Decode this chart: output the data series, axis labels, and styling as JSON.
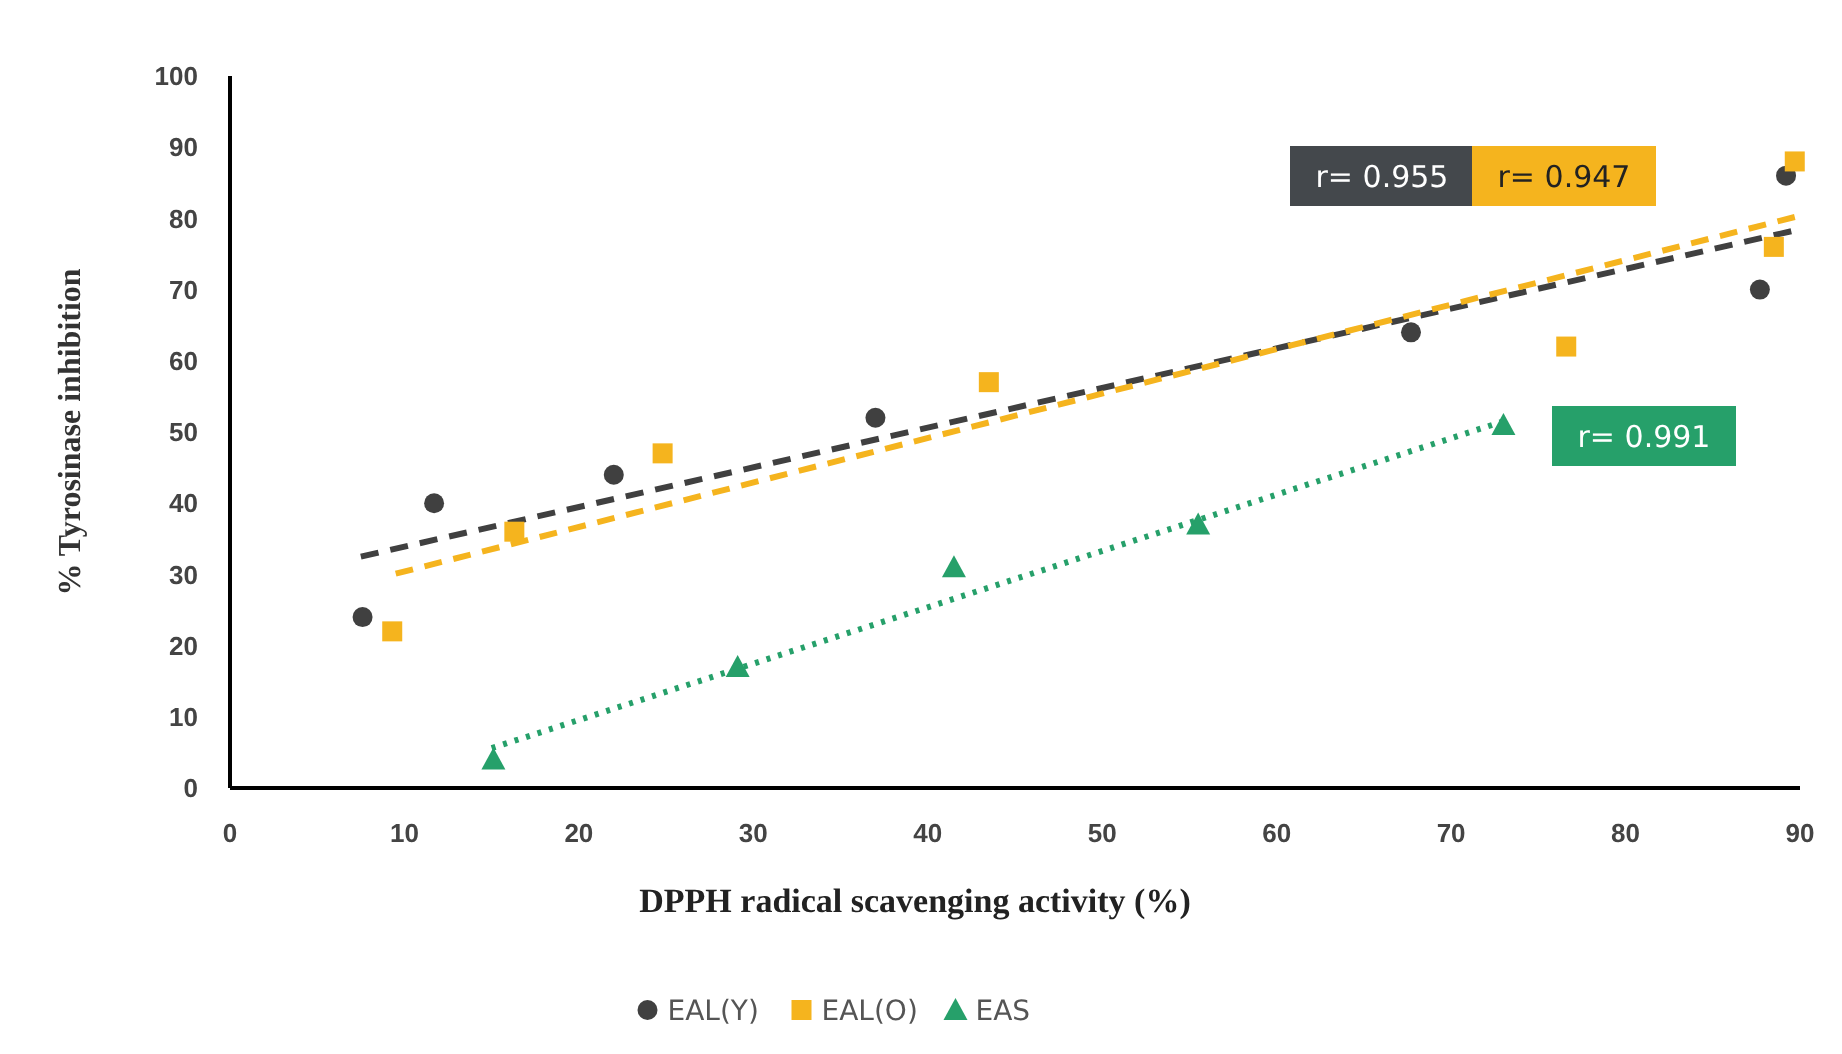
{
  "chart_data": {
    "type": "scatter",
    "xlabel": "DPPH radical scavenging activity (%)",
    "ylabel": "% Tyrosinase inhibition",
    "xlim": [
      0,
      90
    ],
    "xticks": [
      0,
      10,
      20,
      30,
      40,
      50,
      60,
      70,
      80,
      90
    ],
    "ylim": [
      0,
      100
    ],
    "yticks": [
      0,
      10,
      20,
      30,
      40,
      50,
      60,
      70,
      80,
      90,
      100
    ],
    "grid": false,
    "legend": "bottom",
    "series": [
      {
        "name": "EAL(Y)",
        "color": "#404040",
        "marker": "circle",
        "x": [
          7.6,
          11.7,
          22.0,
          37.0,
          67.7,
          87.7,
          89.2
        ],
        "values": [
          24,
          40,
          44,
          52,
          64,
          70,
          86
        ]
      },
      {
        "name": "EAL(O)",
        "color": "#f5b41e",
        "marker": "square",
        "x": [
          9.3,
          16.3,
          24.8,
          43.5,
          76.6,
          88.5,
          89.7
        ],
        "values": [
          22,
          36,
          47,
          57,
          62,
          76,
          88
        ]
      },
      {
        "name": "EAS",
        "color": "#26a06a",
        "marker": "triangle",
        "x": [
          15.1,
          29.1,
          41.5,
          55.5,
          73.0
        ],
        "values": [
          4,
          17,
          31,
          37,
          51
        ]
      },
      {
        "type": "line",
        "color": "#404040",
        "line_style": "dashed",
        "x": [
          7.5,
          89.5
        ],
        "values": [
          32.5,
          78.2
        ]
      },
      {
        "type": "line",
        "color": "#f5b41e",
        "line_style": "dashed",
        "x": [
          9.5,
          89.7
        ],
        "values": [
          30.1,
          80.2
        ]
      },
      {
        "type": "line",
        "color": "#26a06a",
        "line_style": "dotted",
        "x": [
          15,
          73
        ],
        "values": [
          5.6,
          51.5
        ]
      }
    ],
    "annotations": [
      "r= 0.955",
      "r= 0.947",
      "r= 0.991"
    ]
  }
}
